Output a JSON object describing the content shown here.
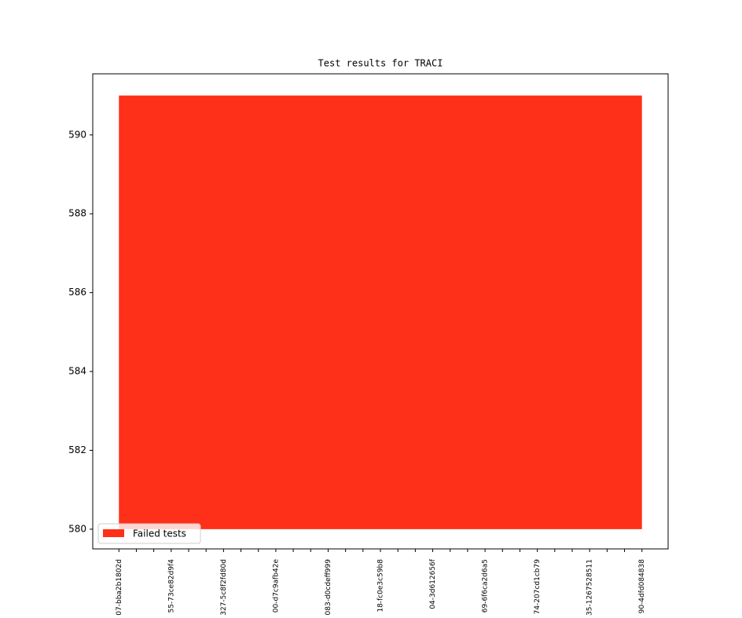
{
  "chart_data": {
    "type": "area",
    "title": "Test results for TRACI",
    "categories": [
      "07-bba2b1802d",
      null,
      null,
      "55-73ce82d9f4",
      null,
      null,
      "327-5c8f2fd80d",
      null,
      null,
      "00-d7c9afb42e",
      null,
      null,
      "083-d0cdeff999",
      null,
      null,
      "18-fc0e3c59b8",
      null,
      null,
      "04-3d612656f",
      null,
      null,
      "69-6f6ca2d6a5",
      null,
      null,
      "74-207cd1cb79",
      null,
      null,
      "35-1267528511",
      null,
      null,
      "90-4dfd084838"
    ],
    "series": [
      {
        "name": "Failed tests",
        "color": "#ff3019",
        "values": [
          591,
          591,
          591,
          591,
          591,
          591,
          591,
          591,
          591,
          591,
          591,
          591,
          591,
          591,
          591,
          591,
          591,
          591,
          591,
          591,
          591,
          591,
          591,
          591,
          591,
          591,
          591,
          591,
          591,
          591,
          591
        ],
        "base": [
          580,
          580,
          580,
          580,
          580,
          580,
          580,
          580,
          580,
          580,
          580,
          580,
          580,
          580,
          580,
          580,
          580,
          580,
          580,
          580,
          580,
          580,
          580,
          580,
          580,
          580,
          580,
          580,
          580,
          580,
          580
        ]
      }
    ],
    "xlim": [
      -1.5,
      31.5
    ],
    "ylim": [
      579.5,
      591.55
    ],
    "yticks": [
      580,
      582,
      584,
      586,
      588,
      590
    ],
    "legend": "lower left"
  }
}
